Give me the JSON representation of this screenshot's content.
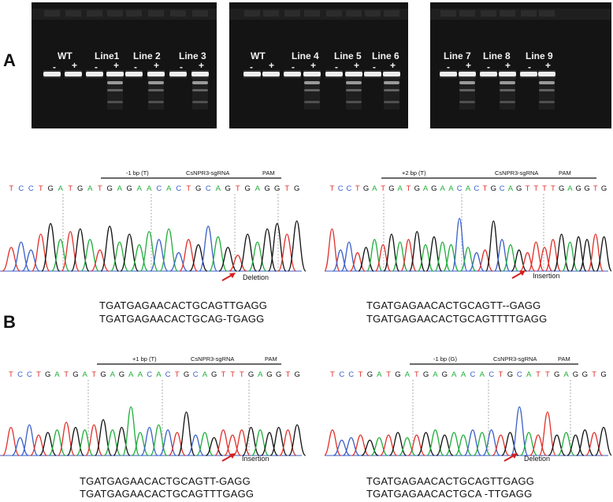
{
  "panel_a": {
    "letter": "A",
    "gel1": {
      "lanes": [
        "WT",
        "Line1",
        "Line 2",
        "Line 3"
      ]
    },
    "gel2": {
      "lanes": [
        "WT",
        "Line 4",
        "Line 5",
        "Line 6"
      ]
    },
    "gel3": {
      "lanes": [
        "Line 7",
        "Line 8",
        "Line 9"
      ]
    },
    "minus": "-",
    "plus": "+"
  },
  "panel_b": {
    "letter": "B",
    "chromatograms": [
      {
        "edit": "-1 bp (T)",
        "target": "CsNPR3-sgRNA",
        "pam": "PAM",
        "bases": "TCCTGATGATGAGAACACTGCAGTGAGGTG",
        "mutation": "Deletion",
        "wt_seq": "TGATGAGAACACTGCAGTTGAGG",
        "mut_seq": "TGATGAGAACACTGCAG-TGAGG"
      },
      {
        "edit": "+2 bp (T)",
        "target": "CsNPR3-sgRNA",
        "pam": "PAM",
        "bases": "TCCTGATGATGAGAACACTGCAGTTTTGAGGTG",
        "mutation": "Insertion",
        "wt_seq": "TGATGAGAACACTGCAGTT--GAGG",
        "mut_seq": "TGATGAGAACACTGCAGTTTTGAGG"
      },
      {
        "edit": "+1 bp (T)",
        "target": "CsNPR3-sgRNA",
        "pam": "PAM",
        "bases": "TCCTGATGATGAGAACACTGCAGTTTGAGGTG",
        "mutation": "Insertion",
        "wt_seq": "TGATGAGAACACTGCAGTT-GAGG",
        "mut_seq": "TGATGAGAACACTGCAGTTTGAGG"
      },
      {
        "edit": "-1 bp (G)",
        "target": "CsNPR3-sgRNA",
        "pam": "PAM",
        "bases": "TCCTGATGATGAGAACACTGCATTGAGGTG",
        "mutation": "Deletion",
        "wt_seq": "TGATGAGAACACTGCAGTTGAGG",
        "mut_seq": "TGATGAGAACACTGCA -TTGAGG"
      }
    ],
    "colors": {
      "A": "#1fae3a",
      "C": "#3a5fc8",
      "G": "#111111",
      "T": "#e0302a"
    }
  }
}
